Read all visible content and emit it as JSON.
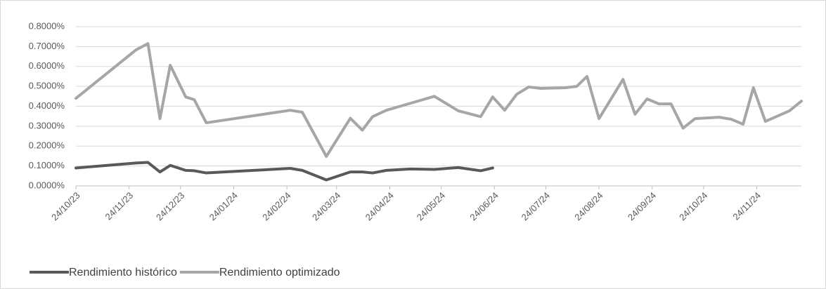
{
  "chart_data": {
    "type": "line",
    "x": [
      "2023-10-24",
      "2023-11-28",
      "2023-12-05",
      "2023-12-12",
      "2023-12-18",
      "2023-12-27",
      "2024-01-01",
      "2024-01-08",
      "2024-02-26",
      "2024-03-04",
      "2024-03-18",
      "2024-04-01",
      "2024-04-08",
      "2024-04-14",
      "2024-04-22",
      "2024-05-06",
      "2024-05-20",
      "2024-06-03",
      "2024-06-16",
      "2024-06-23",
      "2024-06-30",
      "2024-07-07",
      "2024-07-14",
      "2024-07-21",
      "2024-08-04",
      "2024-08-11",
      "2024-08-17",
      "2024-08-24",
      "2024-09-07",
      "2024-09-14",
      "2024-09-21",
      "2024-09-28",
      "2024-10-05",
      "2024-10-12",
      "2024-10-19",
      "2024-11-02",
      "2024-11-09",
      "2024-11-16",
      "2024-11-22",
      "2024-11-29",
      "2024-12-13",
      "2024-12-20"
    ],
    "series": [
      {
        "name": "Rendimiento histórico",
        "color": "#595959",
        "values": [
          0.09,
          0.115,
          0.118,
          0.07,
          0.103,
          0.078,
          0.076,
          0.065,
          0.088,
          0.078,
          0.03,
          0.07,
          0.07,
          0.065,
          0.078,
          0.085,
          0.083,
          0.092,
          0.076,
          0.09,
          null,
          null,
          null,
          null,
          null,
          null,
          null,
          null,
          null,
          null,
          null,
          null,
          null,
          null,
          null,
          null,
          null,
          null,
          null,
          null,
          null,
          null
        ]
      },
      {
        "name": "Rendimiento optimizado",
        "color": "#a6a6a6",
        "values": [
          0.44,
          0.683,
          0.715,
          0.338,
          0.606,
          0.447,
          0.433,
          0.317,
          0.38,
          0.37,
          0.148,
          0.34,
          0.28,
          0.348,
          0.38,
          0.415,
          0.45,
          0.377,
          0.348,
          0.447,
          0.38,
          0.46,
          0.497,
          0.49,
          0.493,
          0.5,
          0.55,
          0.338,
          0.535,
          0.36,
          0.437,
          0.412,
          0.412,
          0.29,
          0.338,
          0.345,
          0.335,
          0.31,
          0.493,
          0.324,
          0.377,
          0.426
        ]
      }
    ],
    "xlim": [
      "2023-10-24",
      "2024-12-20"
    ],
    "xticks": [
      {
        "value": "2023-10-24",
        "label": "24/10/23"
      },
      {
        "value": "2023-11-24",
        "label": "24/11/23"
      },
      {
        "value": "2023-12-24",
        "label": "24/12/23"
      },
      {
        "value": "2024-01-24",
        "label": "24/01/24"
      },
      {
        "value": "2024-02-24",
        "label": "24/02/24"
      },
      {
        "value": "2024-03-24",
        "label": "24/03/24"
      },
      {
        "value": "2024-04-24",
        "label": "24/04/24"
      },
      {
        "value": "2024-05-24",
        "label": "24/05/24"
      },
      {
        "value": "2024-06-24",
        "label": "24/06/24"
      },
      {
        "value": "2024-07-24",
        "label": "24/07/24"
      },
      {
        "value": "2024-08-24",
        "label": "24/08/24"
      },
      {
        "value": "2024-09-24",
        "label": "24/09/24"
      },
      {
        "value": "2024-10-24",
        "label": "24/10/24"
      },
      {
        "value": "2024-11-24",
        "label": "24/11/24"
      }
    ],
    "ylim": [
      0,
      0.8
    ],
    "yticks": [
      {
        "value": 0,
        "label": "0.0000%"
      },
      {
        "value": 0.1,
        "label": "0.1000%"
      },
      {
        "value": 0.2,
        "label": "0.2000%"
      },
      {
        "value": 0.3,
        "label": "0.3000%"
      },
      {
        "value": 0.4,
        "label": "0.4000%"
      },
      {
        "value": 0.5,
        "label": "0.5000%"
      },
      {
        "value": 0.6,
        "label": "0.6000%"
      },
      {
        "value": 0.7,
        "label": "0.7000%"
      },
      {
        "value": 0.8,
        "label": "0.8000%"
      }
    ],
    "grid": true,
    "legend": "bottom-left"
  }
}
